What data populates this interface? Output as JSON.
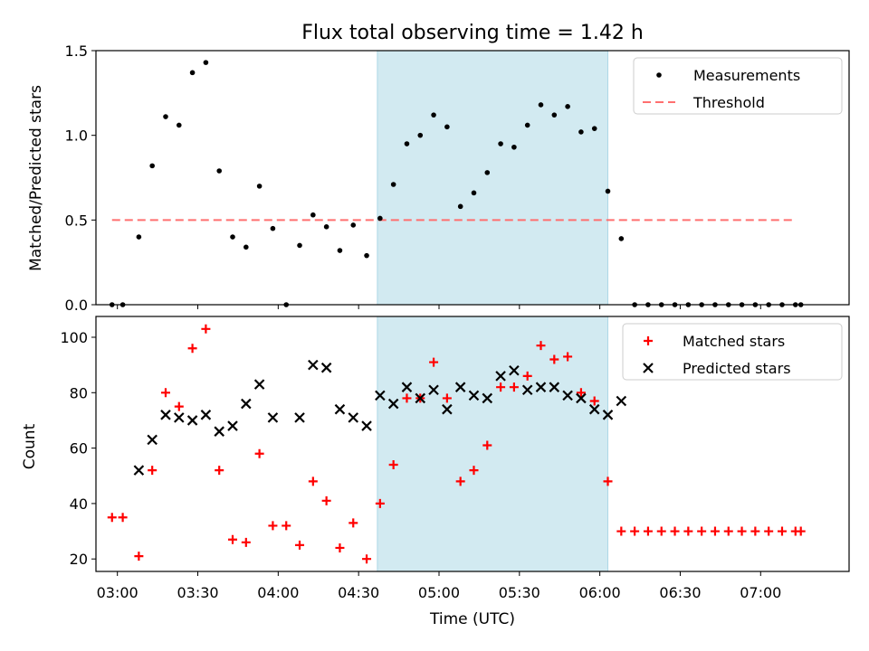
{
  "title": "Flux total observing time = 1.42 h",
  "colors": {
    "shade": "#add8e6",
    "threshold": "#ff6f6f",
    "matched": "#ff0000",
    "predicted": "#000000",
    "measurement": "#000000"
  },
  "chart_data": [
    {
      "type": "scatter",
      "ylabel": "Matched/Predicted stars",
      "ylim": [
        0,
        1.5
      ],
      "xlim": [
        "02:52",
        "07:33"
      ],
      "yticks": [
        0,
        0.5,
        1.0,
        1.5
      ],
      "ytick_labels": [
        "0.0",
        "0.5",
        "1.0",
        "1.5"
      ],
      "shaded_interval": [
        "04:37",
        "06:03"
      ],
      "legend": {
        "placement": "top-right",
        "entries": [
          "Measurements",
          "Threshold"
        ]
      },
      "threshold": {
        "name": "Threshold",
        "y": 0.5,
        "x_range": [
          "02:58",
          "07:12"
        ]
      },
      "series": [
        {
          "name": "Measurements",
          "marker": "dot",
          "x": [
            "02:58",
            "03:02",
            "03:08",
            "03:13",
            "03:18",
            "03:23",
            "03:28",
            "03:33",
            "03:38",
            "03:43",
            "03:48",
            "03:53",
            "03:58",
            "04:03",
            "04:08",
            "04:13",
            "04:18",
            "04:23",
            "04:28",
            "04:33",
            "04:38",
            "04:43",
            "04:48",
            "04:53",
            "04:58",
            "05:03",
            "05:08",
            "05:13",
            "05:18",
            "05:23",
            "05:28",
            "05:33",
            "05:38",
            "05:43",
            "05:48",
            "05:53",
            "05:58",
            "06:03",
            "06:08",
            "06:13",
            "06:18",
            "06:23",
            "06:28",
            "06:33",
            "06:38",
            "06:43",
            "06:48",
            "06:53",
            "06:58",
            "07:03",
            "07:08",
            "07:13",
            "07:15"
          ],
          "values": [
            0,
            0,
            0.4,
            0.82,
            1.11,
            1.06,
            1.37,
            1.43,
            0.79,
            0.4,
            0.34,
            0.7,
            0.45,
            0,
            0.35,
            0.53,
            0.46,
            0.32,
            0.47,
            0.29,
            0.51,
            0.71,
            0.95,
            1.0,
            1.12,
            1.05,
            0.58,
            0.66,
            0.78,
            0.95,
            0.93,
            1.06,
            1.18,
            1.12,
            1.17,
            1.02,
            1.04,
            0.67,
            0.39,
            0,
            0,
            0,
            0,
            0,
            0,
            0,
            0,
            0,
            0,
            0,
            0,
            0,
            0
          ]
        }
      ]
    },
    {
      "type": "scatter",
      "ylabel": "Count",
      "xlabel": "Time (UTC)",
      "ylim": [
        15.5,
        107.5
      ],
      "xlim": [
        "02:52",
        "07:33"
      ],
      "yticks": [
        20,
        40,
        60,
        80,
        100
      ],
      "ytick_labels": [
        "20",
        "40",
        "60",
        "80",
        "100"
      ],
      "xticks": [
        "03:00",
        "03:30",
        "04:00",
        "04:30",
        "05:00",
        "05:30",
        "06:00",
        "06:30",
        "07:00"
      ],
      "xtick_labels": [
        "03:00",
        "03:30",
        "04:00",
        "04:30",
        "05:00",
        "05:30",
        "06:00",
        "06:30",
        "07:00"
      ],
      "shaded_interval": [
        "04:37",
        "06:03"
      ],
      "legend": {
        "placement": "top-right",
        "entries": [
          "Matched stars",
          "Predicted stars"
        ]
      },
      "series": [
        {
          "name": "Matched stars",
          "marker": "plus",
          "x": [
            "02:58",
            "03:02",
            "03:08",
            "03:13",
            "03:18",
            "03:23",
            "03:28",
            "03:33",
            "03:38",
            "03:43",
            "03:48",
            "03:53",
            "03:58",
            "04:03",
            "04:08",
            "04:13",
            "04:18",
            "04:23",
            "04:28",
            "04:33",
            "04:38",
            "04:43",
            "04:48",
            "04:53",
            "04:58",
            "05:03",
            "05:08",
            "05:13",
            "05:18",
            "05:23",
            "05:28",
            "05:33",
            "05:38",
            "05:43",
            "05:48",
            "05:53",
            "05:58",
            "06:03",
            "06:08",
            "06:13",
            "06:18",
            "06:23",
            "06:28",
            "06:33",
            "06:38",
            "06:43",
            "06:48",
            "06:53",
            "06:58",
            "07:03",
            "07:08",
            "07:13",
            "07:15"
          ],
          "values": [
            35,
            35,
            21,
            52,
            80,
            75,
            96,
            103,
            52,
            27,
            26,
            58,
            32,
            32,
            25,
            48,
            41,
            24,
            33,
            20,
            40,
            54,
            78,
            78,
            91,
            78,
            48,
            52,
            61,
            82,
            82,
            86,
            97,
            92,
            93,
            80,
            77,
            48,
            30,
            30,
            30,
            30,
            30,
            30,
            30,
            30,
            30,
            30,
            30,
            30,
            30,
            30,
            30
          ]
        },
        {
          "name": "Predicted stars",
          "marker": "x",
          "x": [
            "03:08",
            "03:13",
            "03:18",
            "03:23",
            "03:28",
            "03:33",
            "03:38",
            "03:43",
            "03:48",
            "03:53",
            "03:58",
            "04:08",
            "04:13",
            "04:18",
            "04:23",
            "04:28",
            "04:33",
            "04:38",
            "04:43",
            "04:48",
            "04:53",
            "04:58",
            "05:03",
            "05:08",
            "05:13",
            "05:18",
            "05:23",
            "05:28",
            "05:33",
            "05:38",
            "05:43",
            "05:48",
            "05:53",
            "05:58",
            "06:03",
            "06:08"
          ],
          "values": [
            52,
            63,
            72,
            71,
            70,
            72,
            66,
            68,
            76,
            83,
            71,
            71,
            90,
            89,
            74,
            71,
            68,
            79,
            76,
            82,
            78,
            81,
            74,
            82,
            79,
            78,
            86,
            88,
            81,
            82,
            82,
            79,
            78,
            74,
            72,
            77
          ]
        }
      ]
    }
  ]
}
